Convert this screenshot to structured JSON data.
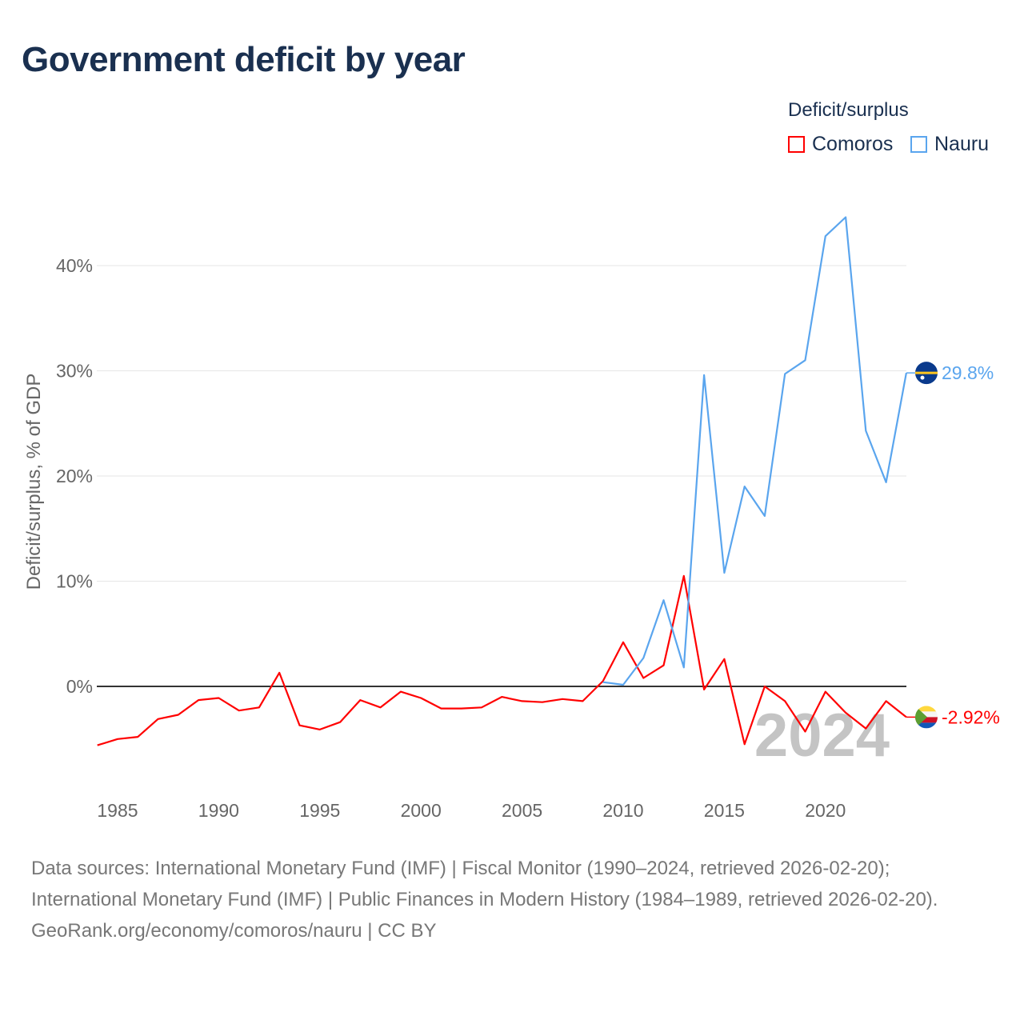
{
  "title": "Government deficit by year",
  "legend": {
    "title": "Deficit/surplus",
    "items": [
      {
        "label": "Comoros",
        "color": "#ff0000"
      },
      {
        "label": "Nauru",
        "color": "#5aa5ee"
      }
    ]
  },
  "chart_data": {
    "type": "line",
    "title": "Government deficit by year",
    "xlabel": "",
    "ylabel": "Deficit/surplus, % of GDP",
    "xlim": [
      1984,
      2024
    ],
    "ylim": [
      -8,
      45
    ],
    "x_ticks": [
      1985,
      1990,
      1995,
      2000,
      2005,
      2010,
      2015,
      2020
    ],
    "y_ticks": [
      0,
      10,
      20,
      30,
      40
    ],
    "y_tick_labels": [
      "0%",
      "10%",
      "20%",
      "30%",
      "40%"
    ],
    "grid": true,
    "legend_position": "top-right",
    "watermark_year": "2024",
    "series": [
      {
        "name": "Comoros",
        "color": "#ff0000",
        "end_label": "-2.92%",
        "x": [
          1984,
          1985,
          1986,
          1987,
          1988,
          1989,
          1990,
          1991,
          1992,
          1993,
          1994,
          1995,
          1996,
          1997,
          1998,
          1999,
          2000,
          2001,
          2002,
          2003,
          2004,
          2005,
          2006,
          2007,
          2008,
          2009,
          2010,
          2011,
          2012,
          2013,
          2014,
          2015,
          2016,
          2017,
          2018,
          2019,
          2020,
          2021,
          2022,
          2023,
          2024
        ],
        "values": [
          -5.6,
          -5.0,
          -4.8,
          -3.1,
          -2.7,
          -1.3,
          -1.1,
          -2.3,
          -2.0,
          1.3,
          -3.7,
          -4.1,
          -3.4,
          -1.3,
          -2.0,
          -0.5,
          -1.1,
          -2.1,
          -2.1,
          -2.0,
          -1.0,
          -1.4,
          -1.5,
          -1.2,
          -1.4,
          0.5,
          4.2,
          0.8,
          2.0,
          10.5,
          -0.3,
          2.6,
          -5.5,
          0.0,
          -1.4,
          -4.3,
          -0.5,
          -2.5,
          -4.0,
          -1.4,
          -2.92
        ]
      },
      {
        "name": "Nauru",
        "color": "#5aa5ee",
        "end_label": "29.8%",
        "x": [
          2009,
          2010,
          2011,
          2012,
          2013,
          2014,
          2015,
          2016,
          2017,
          2018,
          2019,
          2020,
          2021,
          2022,
          2023,
          2024
        ],
        "values": [
          0.4,
          0.15,
          2.7,
          8.2,
          1.8,
          29.6,
          10.8,
          19.0,
          16.2,
          29.7,
          31.0,
          42.8,
          44.6,
          24.3,
          19.4,
          29.8
        ]
      }
    ]
  },
  "footer": {
    "sources": "Data sources: International Monetary Fund (IMF) | Fiscal Monitor (1990–2024, retrieved 2026-02-20); International Monetary Fund (IMF) | Public Finances in Modern History (1984–1989, retrieved 2026-02-20).",
    "credit": "GeoRank.org/economy/comoros/nauru | CC BY"
  }
}
